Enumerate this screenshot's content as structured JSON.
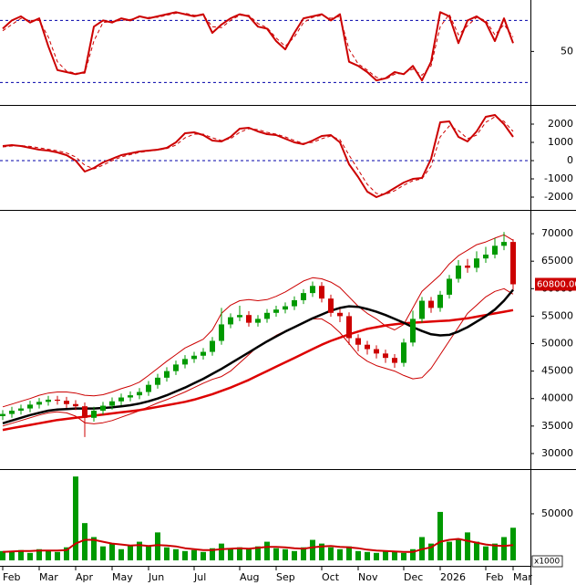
{
  "chart_data": [
    {
      "type": "line",
      "xlim": [
        -0.3,
        57.7
      ],
      "ylim": [
        0,
        98
      ],
      "yticks": [
        50
      ],
      "ref_lines": [
        20,
        80
      ],
      "ref_color": "#0000aa",
      "series": [
        {
          "color": "#cc0000",
          "width": 2,
          "values": [
            72,
            80,
            84,
            78,
            82,
            55,
            32,
            30,
            28,
            30,
            74,
            80,
            78,
            82,
            80,
            84,
            82,
            84,
            86,
            88,
            86,
            84,
            86,
            68,
            76,
            82,
            86,
            84,
            74,
            72,
            60,
            52,
            68,
            82,
            84,
            86,
            80,
            86,
            40,
            36,
            30,
            22,
            24,
            30,
            28,
            36,
            22,
            40,
            88,
            84,
            58,
            80,
            84,
            78,
            60,
            82,
            58
          ]
        },
        {
          "color": "#cc0000",
          "width": 1,
          "dashed": true,
          "values": [
            70,
            76,
            82,
            80,
            80,
            64,
            40,
            31,
            29,
            29,
            60,
            78,
            79,
            80,
            81,
            83,
            83,
            83,
            85,
            87,
            87,
            85,
            85,
            74,
            73,
            80,
            85,
            85,
            77,
            73,
            63,
            55,
            64,
            78,
            83,
            85,
            82,
            84,
            52,
            38,
            32,
            25,
            23,
            28,
            29,
            33,
            27,
            36,
            74,
            86,
            66,
            75,
            83,
            80,
            66,
            76,
            64
          ]
        }
      ]
    },
    {
      "type": "line",
      "xlim": [
        -0.3,
        57.7
      ],
      "ylim": [
        -2600,
        2900
      ],
      "yticks": [
        2000,
        1000,
        0,
        -1000,
        -2000
      ],
      "ref_lines": [
        0
      ],
      "ref_color": "#0000aa",
      "series": [
        {
          "color": "#cc0000",
          "width": 2,
          "values": [
            800,
            850,
            800,
            700,
            600,
            550,
            450,
            300,
            0,
            -600,
            -400,
            -100,
            100,
            300,
            400,
            500,
            550,
            600,
            700,
            1000,
            1500,
            1550,
            1400,
            1100,
            1050,
            1300,
            1750,
            1800,
            1600,
            1450,
            1400,
            1200,
            1000,
            900,
            1100,
            1350,
            1400,
            1000,
            -200,
            -900,
            -1700,
            -2000,
            -1800,
            -1500,
            -1200,
            -1000,
            -950,
            100,
            2100,
            2150,
            1300,
            1050,
            1600,
            2400,
            2500,
            2000,
            1300
          ]
        },
        {
          "color": "#cc0000",
          "width": 1,
          "dashed": true,
          "values": [
            750,
            800,
            820,
            780,
            700,
            620,
            540,
            420,
            200,
            -250,
            -450,
            -250,
            0,
            200,
            330,
            450,
            520,
            580,
            660,
            850,
            1250,
            1450,
            1450,
            1250,
            1100,
            1200,
            1550,
            1750,
            1700,
            1550,
            1450,
            1300,
            1100,
            950,
            1000,
            1200,
            1350,
            1150,
            300,
            -500,
            -1300,
            -1800,
            -1850,
            -1650,
            -1350,
            -1100,
            -1000,
            -300,
            1300,
            1900,
            1650,
            1200,
            1400,
            2100,
            2400,
            2150,
            1600
          ]
        }
      ]
    },
    {
      "type": "candlestick",
      "xlim": [
        -0.3,
        57.7
      ],
      "ylim": [
        27500,
        74000
      ],
      "yticks": [
        70000,
        65000,
        60000,
        55000,
        50000,
        45000,
        40000,
        35000,
        30000
      ],
      "up_color": "#009900",
      "down_color": "#cc0000",
      "open": [
        36800,
        37200,
        37800,
        38200,
        38900,
        39400,
        39800,
        39600,
        39000,
        38600,
        36500,
        37800,
        38700,
        39500,
        40200,
        40600,
        41200,
        42500,
        43800,
        45000,
        46200,
        47200,
        47800,
        48500,
        50500,
        53500,
        54800,
        55200,
        53800,
        54500,
        55600,
        56200,
        56800,
        57900,
        59200,
        60500,
        58200,
        55600,
        55000,
        51000,
        49800,
        49000,
        48200,
        47400,
        46500,
        50200,
        54500,
        57800,
        56500,
        58900,
        61800,
        64200,
        63800,
        65500,
        66200,
        67800,
        68500
      ],
      "high": [
        37900,
        38500,
        38900,
        39600,
        40100,
        40500,
        40500,
        40300,
        39700,
        39300,
        38500,
        39400,
        40200,
        40900,
        41300,
        41900,
        43200,
        44500,
        45700,
        46900,
        47900,
        48500,
        49200,
        51200,
        56500,
        55500,
        56900,
        55900,
        55200,
        56300,
        56900,
        57500,
        58600,
        59900,
        61300,
        61200,
        58900,
        56300,
        55700,
        51700,
        50500,
        49700,
        48900,
        48100,
        50900,
        56000,
        58500,
        58500,
        59600,
        62500,
        65200,
        65400,
        66800,
        67600,
        69200,
        70300,
        69000
      ],
      "low": [
        36100,
        36500,
        37100,
        37500,
        38200,
        38700,
        38900,
        38300,
        37900,
        33000,
        35800,
        37100,
        38000,
        38800,
        39500,
        39900,
        40500,
        41800,
        43100,
        44300,
        45500,
        46500,
        47100,
        47800,
        49800,
        52800,
        54100,
        53100,
        53100,
        53800,
        54900,
        55500,
        56100,
        57200,
        58500,
        57500,
        54900,
        53900,
        49800,
        48600,
        48000,
        47300,
        46500,
        45600,
        45800,
        49500,
        53800,
        55600,
        55800,
        58200,
        61100,
        62900,
        63000,
        64700,
        65500,
        67000,
        59800
      ],
      "close": [
        37200,
        37800,
        38200,
        38900,
        39400,
        39800,
        39600,
        39000,
        38600,
        36500,
        37800,
        38700,
        39500,
        40200,
        40600,
        41200,
        42500,
        43800,
        45000,
        46200,
        47200,
        47800,
        48500,
        50500,
        53500,
        54800,
        55200,
        53800,
        54500,
        55600,
        56200,
        56800,
        57900,
        59200,
        60500,
        58200,
        55600,
        55000,
        51000,
        49800,
        49000,
        48200,
        47400,
        46500,
        50200,
        54500,
        57800,
        56500,
        58900,
        61800,
        64200,
        63800,
        65500,
        66200,
        67800,
        68500,
        60800
      ],
      "overlays": [
        {
          "color": "#cc0000",
          "width": 1,
          "values": [
            38500,
            39000,
            39500,
            40000,
            40600,
            41000,
            41200,
            41200,
            41000,
            40600,
            40500,
            40700,
            41200,
            41800,
            42300,
            43000,
            44200,
            45500,
            46800,
            48000,
            49200,
            50000,
            50800,
            52500,
            55500,
            57000,
            57800,
            58000,
            57800,
            58000,
            58600,
            59400,
            60400,
            61400,
            62000,
            61800,
            61200,
            60200,
            58500,
            56800,
            55500,
            54500,
            53200,
            52500,
            53500,
            56500,
            59500,
            61000,
            62500,
            64500,
            66000,
            67000,
            68000,
            68500,
            69200,
            69800,
            68800
          ]
        },
        {
          "color": "#cc0000",
          "width": 1,
          "values": [
            35000,
            35500,
            36000,
            36500,
            37000,
            37400,
            37600,
            37400,
            36800,
            35600,
            35400,
            35600,
            36000,
            36600,
            37200,
            37800,
            38500,
            39200,
            39800,
            40500,
            41200,
            42000,
            42800,
            43500,
            44000,
            45000,
            46500,
            48000,
            49500,
            50500,
            51500,
            52300,
            53000,
            53800,
            54500,
            54500,
            53500,
            52000,
            50000,
            48000,
            46800,
            46000,
            45500,
            45000,
            44200,
            43600,
            43800,
            45500,
            48000,
            50500,
            53000,
            55500,
            57000,
            58500,
            59500,
            60000,
            59000
          ]
        },
        {
          "color": "#dd0000",
          "width": 2.5,
          "values": [
            34300,
            34600,
            34900,
            35200,
            35500,
            35800,
            36100,
            36300,
            36500,
            36700,
            36900,
            37100,
            37300,
            37500,
            37700,
            37900,
            38200,
            38500,
            38800,
            39100,
            39400,
            39800,
            40300,
            40800,
            41400,
            42000,
            42700,
            43400,
            44200,
            45000,
            45800,
            46600,
            47400,
            48200,
            49000,
            49800,
            50500,
            51100,
            51700,
            52200,
            52700,
            53000,
            53300,
            53500,
            53700,
            53800,
            53900,
            54000,
            54100,
            54200,
            54400,
            54600,
            54900,
            55200,
            55500,
            55800,
            56100
          ]
        },
        {
          "color": "#000000",
          "width": 2.5,
          "values": [
            35500,
            36000,
            36500,
            37000,
            37400,
            37800,
            38000,
            38100,
            38200,
            38200,
            38200,
            38300,
            38400,
            38600,
            38800,
            39100,
            39500,
            40000,
            40600,
            41300,
            42000,
            42800,
            43600,
            44500,
            45400,
            46400,
            47400,
            48400,
            49400,
            50400,
            51300,
            52200,
            53000,
            53800,
            54600,
            55300,
            56000,
            56500,
            56800,
            56700,
            56300,
            55800,
            55200,
            54500,
            53800,
            53000,
            52300,
            51700,
            51500,
            51600,
            52200,
            53000,
            54000,
            55000,
            56200,
            57800,
            59800
          ]
        }
      ],
      "last_price": {
        "value": 60800,
        "label": "60800.00"
      },
      "last_price_color": "#cc0000"
    },
    {
      "type": "bar",
      "xlim": [
        -0.3,
        57.7
      ],
      "ylim": [
        0,
        96000
      ],
      "yticks": [
        50000
      ],
      "color": "#009900",
      "y_unit_label": "x1000",
      "values": [
        10000,
        9000,
        11000,
        8000,
        12000,
        10000,
        9000,
        14000,
        90000,
        40000,
        25000,
        15000,
        18000,
        12000,
        16000,
        20000,
        15000,
        30000,
        14000,
        12000,
        10000,
        11000,
        9000,
        13000,
        18000,
        12000,
        14000,
        12000,
        15000,
        20000,
        13000,
        12000,
        10000,
        14000,
        22000,
        18000,
        14000,
        12000,
        15000,
        10000,
        9000,
        8000,
        10000,
        9000,
        8000,
        12000,
        25000,
        18000,
        52000,
        20000,
        22000,
        30000,
        20000,
        15000,
        18000,
        25000,
        35000
      ],
      "series": [
        {
          "color": "#cc0000",
          "width": 2,
          "values": [
            9000,
            9500,
            10000,
            10000,
            10500,
            10500,
            10500,
            11000,
            18000,
            22000,
            22000,
            20000,
            18000,
            17000,
            16000,
            16500,
            15500,
            16500,
            16000,
            15000,
            13000,
            12000,
            11000,
            11000,
            12000,
            12500,
            13000,
            12500,
            13500,
            14500,
            14500,
            14000,
            13000,
            12500,
            14000,
            15000,
            15500,
            14500,
            14000,
            13000,
            11500,
            10500,
            10000,
            9500,
            9000,
            9000,
            12000,
            14000,
            20000,
            22000,
            23000,
            21000,
            19000,
            17000,
            16000,
            15500,
            16500
          ]
        }
      ],
      "xticks": [
        {
          "value": 0,
          "label": "Feb"
        },
        {
          "value": 4,
          "label": "Mar"
        },
        {
          "value": 8,
          "label": "Apr"
        },
        {
          "value": 12,
          "label": "May"
        },
        {
          "value": 16,
          "label": "Jun"
        },
        {
          "value": 21,
          "label": "Jul"
        },
        {
          "value": 26,
          "label": "Aug"
        },
        {
          "value": 30,
          "label": "Sep"
        },
        {
          "value": 35,
          "label": "Oct"
        },
        {
          "value": 39,
          "label": "Nov"
        },
        {
          "value": 44,
          "label": "Dec"
        },
        {
          "value": 48,
          "label": "2026"
        },
        {
          "value": 53,
          "label": "Feb"
        },
        {
          "value": 56,
          "label": "Mar"
        }
      ]
    }
  ]
}
